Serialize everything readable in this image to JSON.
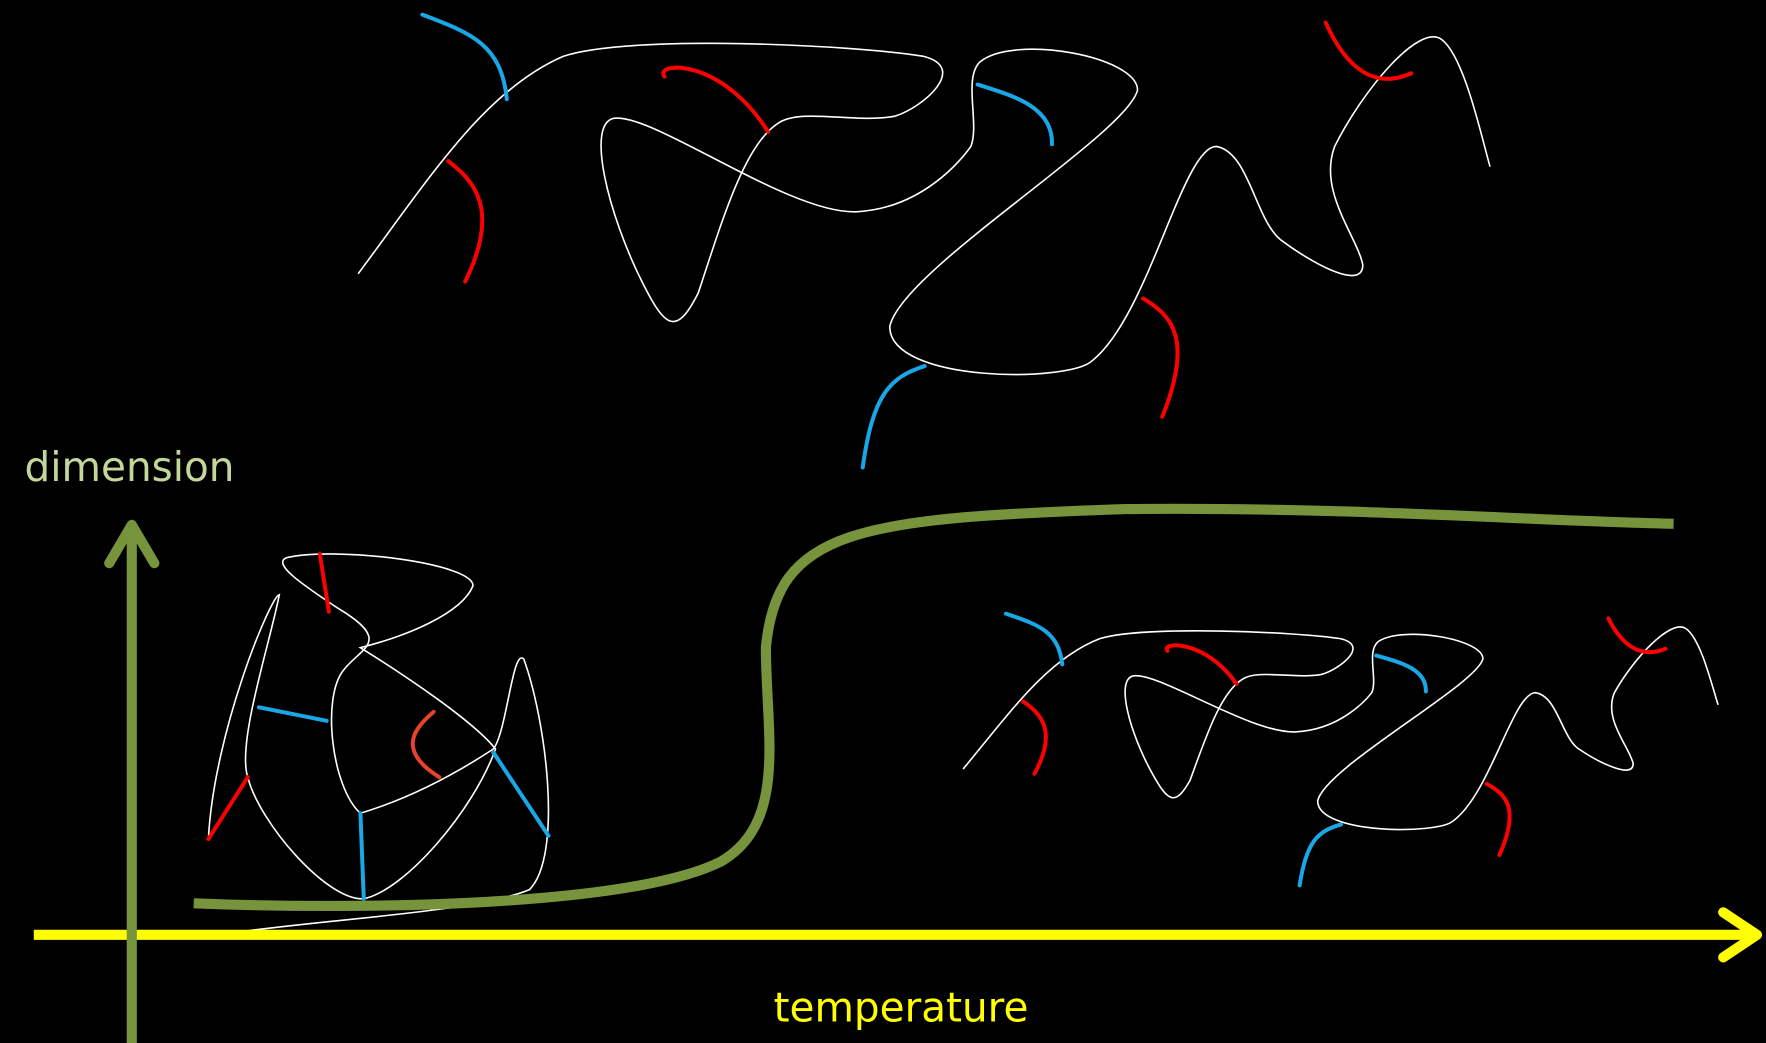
{
  "axes": {
    "y_label": "dimension",
    "x_label": "temperature"
  }
}
